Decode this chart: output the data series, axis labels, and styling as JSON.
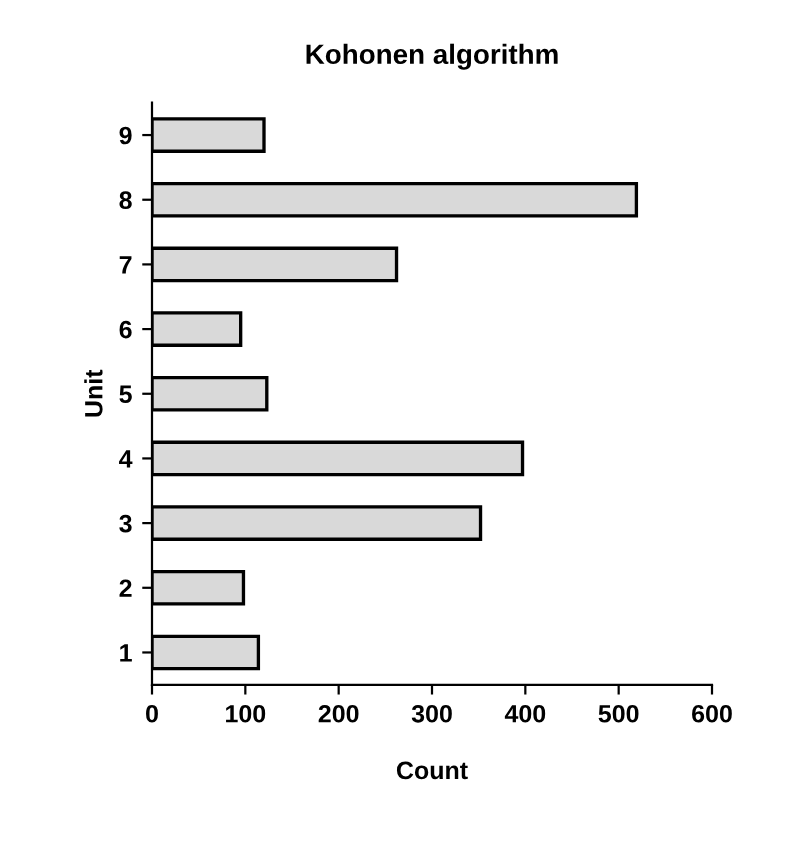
{
  "chart_data": {
    "type": "bar",
    "orientation": "horizontal",
    "title": "Kohonen algorithm",
    "xlabel": "Count",
    "ylabel": "Unit",
    "categories": [
      "9",
      "8",
      "7",
      "6",
      "5",
      "4",
      "3",
      "2",
      "1"
    ],
    "values": [
      120,
      519,
      262,
      95,
      123,
      397,
      352,
      98,
      114
    ],
    "color": "#d9d9d9",
    "xlim": [
      0,
      600
    ],
    "xticks": [
      0,
      100,
      200,
      300,
      400,
      500,
      600
    ],
    "grid": false,
    "legend": false
  }
}
